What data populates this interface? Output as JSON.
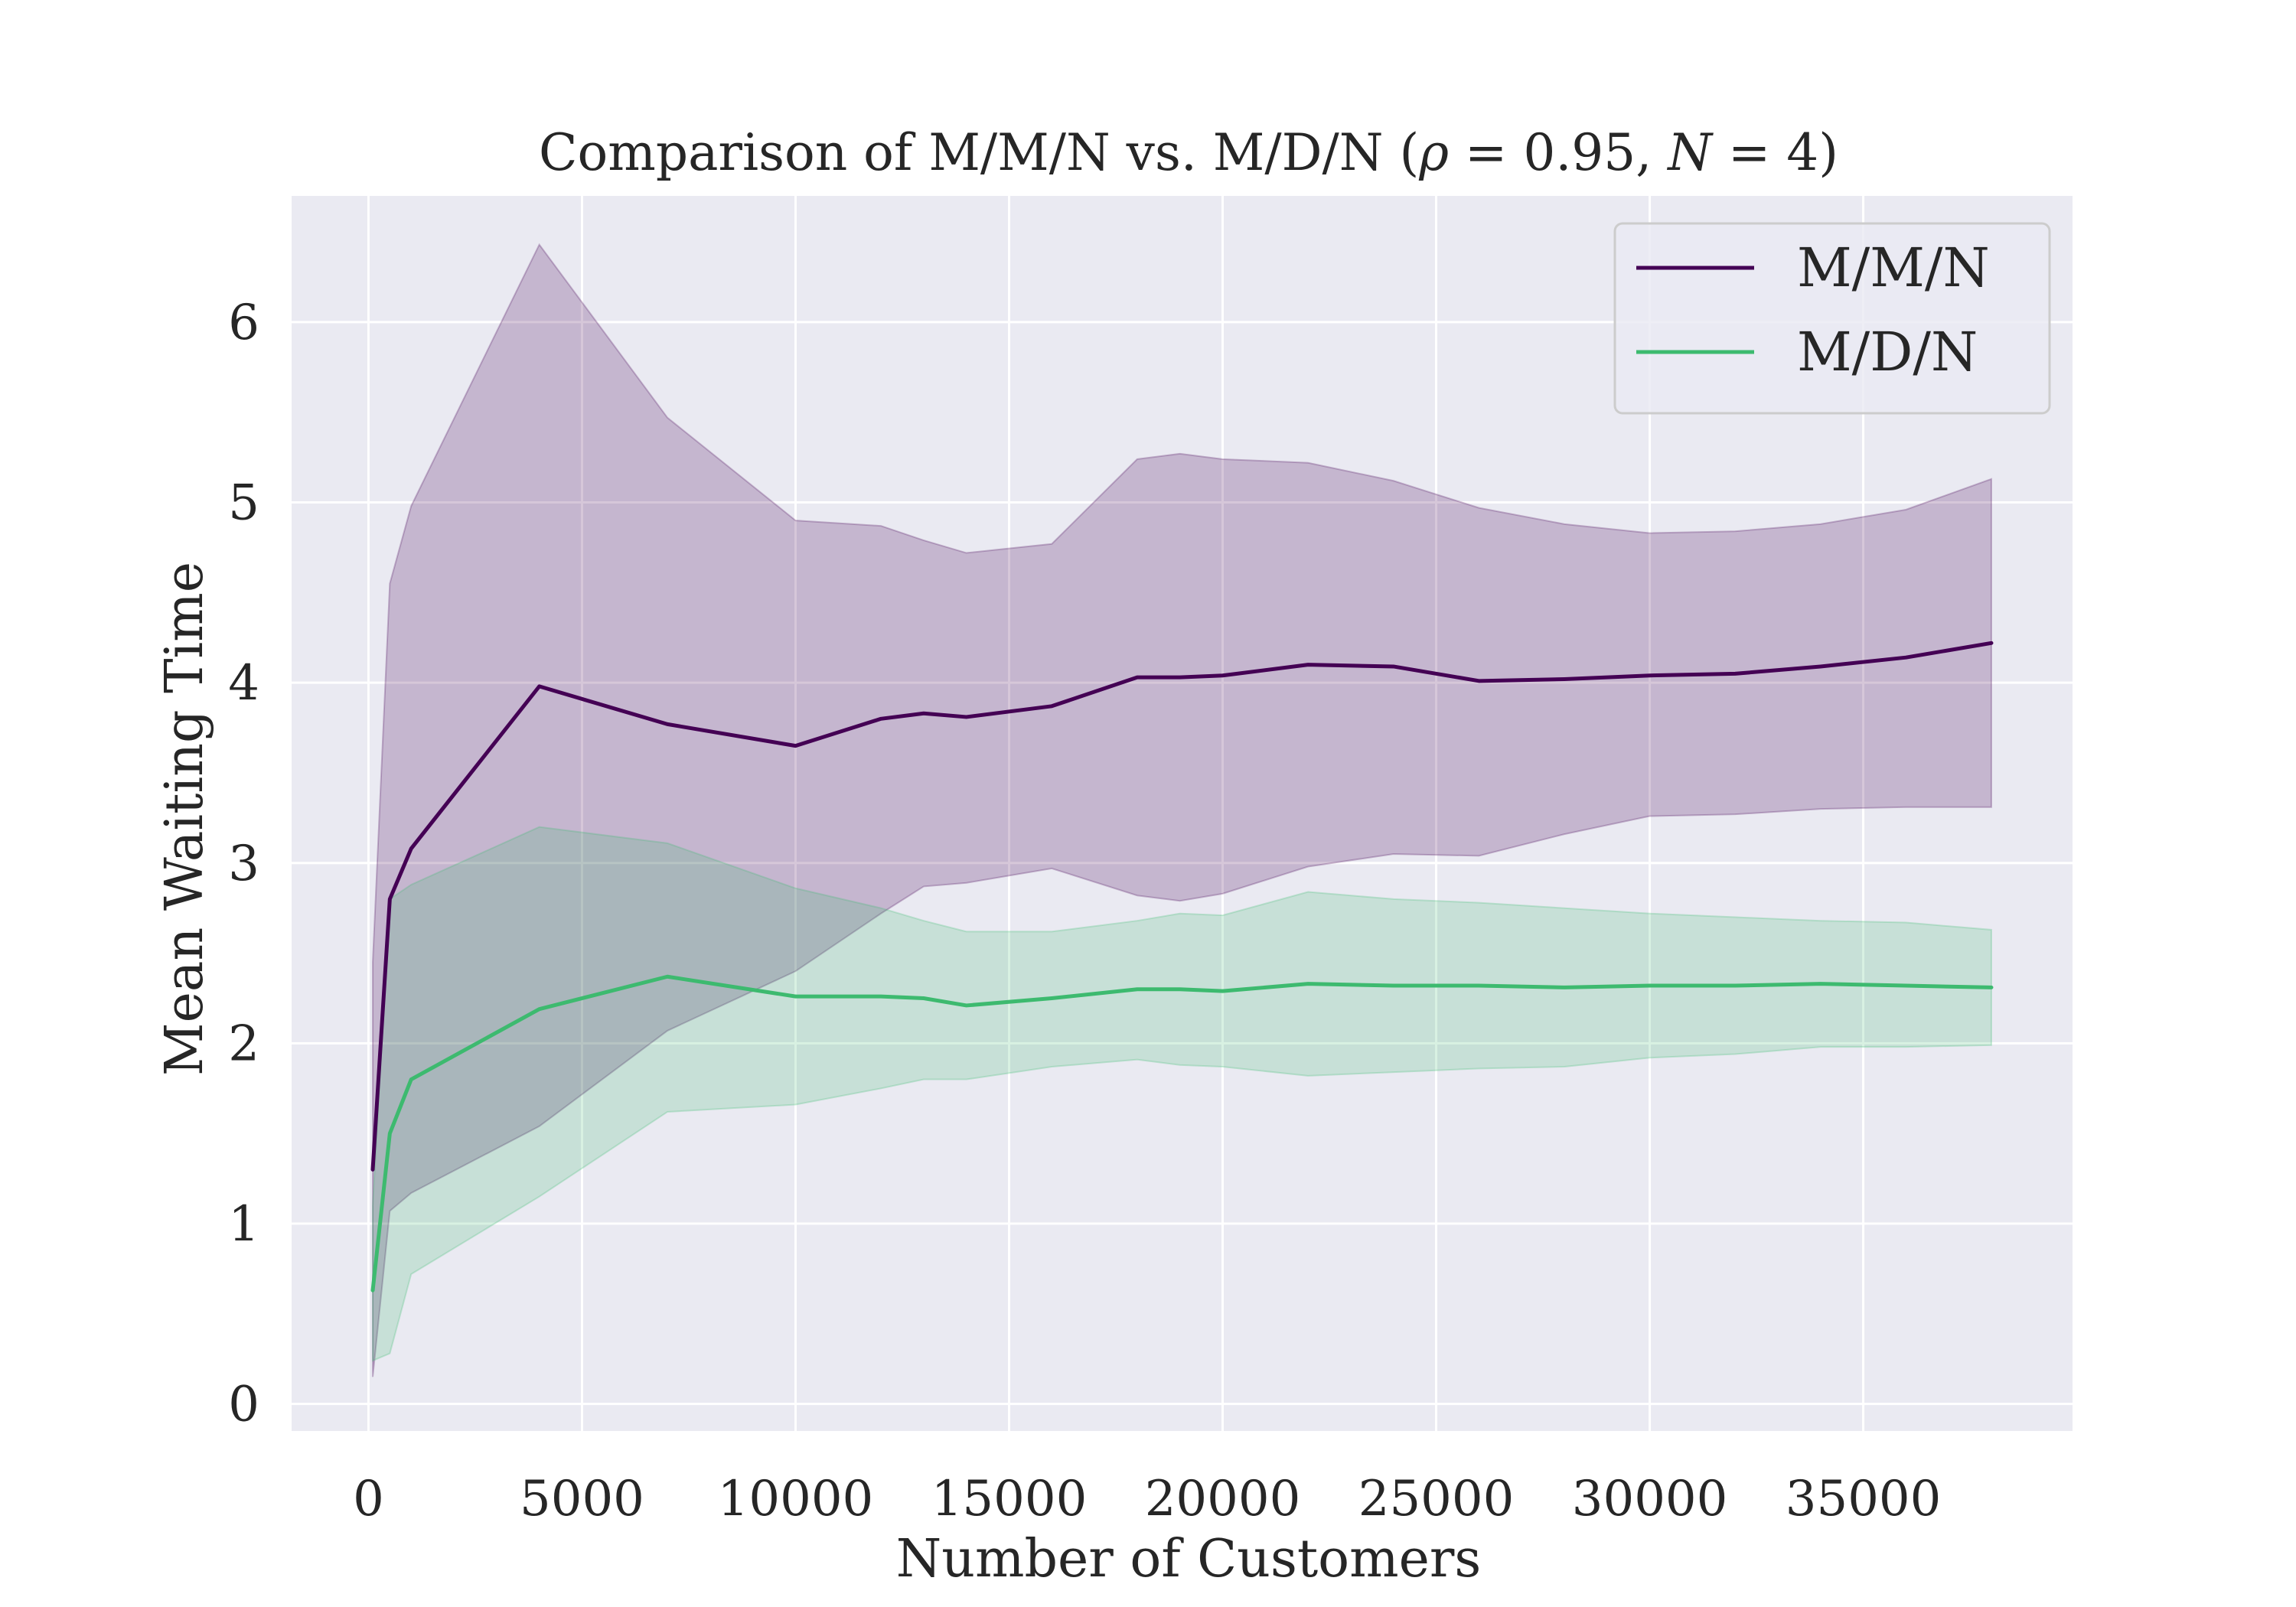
{
  "chart_data": {
    "type": "line",
    "title": {
      "prefix": "Comparison of M/M/N vs. M/D/N (",
      "rho_symbol": "ρ",
      "rho_eq": " = 0.95, ",
      "n_symbol": "N",
      "n_eq": " = 4)"
    },
    "xlabel": "Number of Customers",
    "ylabel": "Mean Waiting Time",
    "xlim": [
      -1800,
      39900
    ],
    "ylim": [
      -0.15,
      6.7
    ],
    "xticks": [
      0,
      5000,
      10000,
      15000,
      20000,
      25000,
      30000,
      35000
    ],
    "xtick_labels": [
      "0",
      "5000",
      "10000",
      "15000",
      "20000",
      "25000",
      "30000",
      "35000"
    ],
    "yticks": [
      0,
      1,
      2,
      3,
      4,
      5,
      6
    ],
    "ytick_labels": [
      "0",
      "1",
      "2",
      "3",
      "4",
      "5",
      "6"
    ],
    "grid": true,
    "legend_position": "top-right",
    "background": "#eaeaf2",
    "series": [
      {
        "name": "M/M/N",
        "color": "#440154",
        "x": [
          100,
          500,
          1000,
          4000,
          7000,
          10000,
          12000,
          13000,
          14000,
          16000,
          18000,
          19000,
          20000,
          22000,
          24000,
          26000,
          28000,
          30000,
          32000,
          34000,
          36000,
          38000
        ],
        "y": [
          1.3,
          2.8,
          3.08,
          3.98,
          3.77,
          3.65,
          3.8,
          3.83,
          3.81,
          3.87,
          4.03,
          4.03,
          4.04,
          4.1,
          4.09,
          4.01,
          4.02,
          4.04,
          4.05,
          4.09,
          4.14,
          4.22
        ],
        "upper": [
          2.45,
          4.55,
          4.98,
          6.43,
          5.47,
          4.9,
          4.87,
          4.79,
          4.72,
          4.77,
          5.24,
          5.27,
          5.24,
          5.22,
          5.12,
          4.97,
          4.88,
          4.83,
          4.84,
          4.88,
          4.96,
          5.13
        ],
        "lower": [
          0.15,
          1.07,
          1.17,
          1.54,
          2.07,
          2.4,
          2.72,
          2.87,
          2.89,
          2.97,
          2.82,
          2.79,
          2.83,
          2.98,
          3.05,
          3.04,
          3.16,
          3.26,
          3.27,
          3.3,
          3.31,
          3.31
        ]
      },
      {
        "name": "M/D/N",
        "color": "#3dba6f",
        "x": [
          100,
          500,
          1000,
          4000,
          7000,
          10000,
          12000,
          13000,
          14000,
          16000,
          18000,
          19000,
          20000,
          22000,
          24000,
          26000,
          28000,
          30000,
          32000,
          34000,
          36000,
          38000
        ],
        "y": [
          0.63,
          1.5,
          1.8,
          2.19,
          2.37,
          2.26,
          2.26,
          2.25,
          2.21,
          2.25,
          2.3,
          2.3,
          2.29,
          2.33,
          2.32,
          2.32,
          2.31,
          2.32,
          2.32,
          2.33,
          2.32,
          2.31
        ],
        "upper": [
          1.1,
          2.8,
          2.88,
          3.2,
          3.11,
          2.86,
          2.75,
          2.68,
          2.62,
          2.62,
          2.68,
          2.72,
          2.71,
          2.84,
          2.8,
          2.78,
          2.75,
          2.72,
          2.7,
          2.68,
          2.67,
          2.63
        ],
        "lower": [
          0.24,
          0.28,
          0.72,
          1.15,
          1.62,
          1.66,
          1.75,
          1.8,
          1.8,
          1.87,
          1.91,
          1.88,
          1.87,
          1.82,
          1.84,
          1.86,
          1.87,
          1.92,
          1.94,
          1.98,
          1.98,
          1.99
        ]
      }
    ]
  }
}
